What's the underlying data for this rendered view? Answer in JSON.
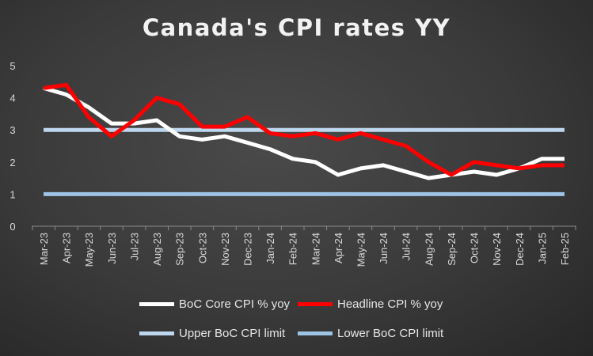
{
  "chart_data": {
    "type": "line",
    "title": "Canada's CPI rates YY",
    "x": [
      "Mar-23",
      "Apr-23",
      "May-23",
      "Jun-23",
      "Jul-23",
      "Aug-23",
      "Sep-23",
      "Oct-23",
      "Nov-23",
      "Dec-23",
      "Jan-24",
      "Feb-24",
      "Mar-24",
      "Apr-24",
      "May-24",
      "Jun-24",
      "Jul-24",
      "Aug-24",
      "Sep-24",
      "Oct-24",
      "Nov-24",
      "Dec-24",
      "Jan-25",
      "Feb-25"
    ],
    "ylim": [
      0,
      5
    ],
    "yticks": [
      0,
      1,
      2,
      3,
      4,
      5
    ],
    "grid": false,
    "legend_position": "bottom",
    "series": [
      {
        "name": "BoC Core CPI % yoy",
        "color": "#ffffff",
        "values": [
          4.3,
          4.1,
          3.7,
          3.2,
          3.2,
          3.3,
          2.8,
          2.7,
          2.8,
          2.6,
          2.4,
          2.1,
          2.0,
          1.6,
          1.8,
          1.9,
          1.7,
          1.5,
          1.6,
          1.7,
          1.6,
          1.8,
          2.1,
          2.1
        ]
      },
      {
        "name": "Headline CPI % yoy",
        "color": "#ff0000",
        "values": [
          4.3,
          4.4,
          3.4,
          2.8,
          3.3,
          4.0,
          3.8,
          3.1,
          3.1,
          3.4,
          2.9,
          2.8,
          2.9,
          2.7,
          2.9,
          2.7,
          2.5,
          2.0,
          1.6,
          2.0,
          1.9,
          1.8,
          1.9,
          1.9
        ]
      },
      {
        "name": "Upper BoC CPI limit",
        "color": "#bdd7ee",
        "values": [
          3,
          3,
          3,
          3,
          3,
          3,
          3,
          3,
          3,
          3,
          3,
          3,
          3,
          3,
          3,
          3,
          3,
          3,
          3,
          3,
          3,
          3,
          3,
          3
        ]
      },
      {
        "name": "Lower BoC CPI limit",
        "color": "#9dc3e6",
        "values": [
          1,
          1,
          1,
          1,
          1,
          1,
          1,
          1,
          1,
          1,
          1,
          1,
          1,
          1,
          1,
          1,
          1,
          1,
          1,
          1,
          1,
          1,
          1,
          1
        ]
      }
    ]
  },
  "legend": {
    "core": "BoC Core CPI % yoy",
    "headline": "Headline CPI % yoy",
    "upper": "Upper BoC CPI limit",
    "lower": "Lower BoC CPI limit"
  },
  "colors": {
    "core": "#ffffff",
    "headline": "#ff0000",
    "upper": "#bdd7ee",
    "lower": "#9dc3e6"
  }
}
